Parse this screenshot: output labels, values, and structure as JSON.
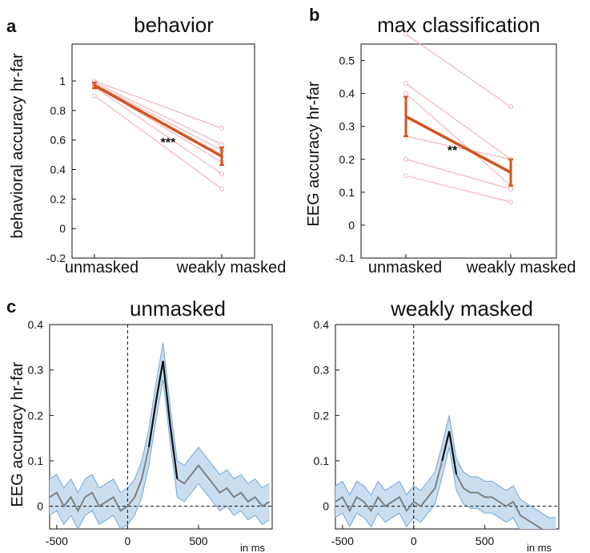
{
  "colors": {
    "accent": "#D4541F",
    "accent_light": "#F4B4B4",
    "mean_line": "#111111",
    "nonsig_line": "#808080",
    "band_fill": "#C9DDEF",
    "band_edge": "#6FA8DC"
  },
  "panel_letters": [
    "a",
    "b",
    "c"
  ],
  "chart_data": [
    {
      "type": "line",
      "letter": "a",
      "title": "behavior",
      "ylabel": "behavioral accuracy hr-far",
      "xlabel": "",
      "categories": [
        "unmasked",
        "weakly masked"
      ],
      "ylim": [
        -0.2,
        1.25
      ],
      "yticks": [
        -0.2,
        0,
        0.2,
        0.4,
        0.6,
        0.8,
        1
      ],
      "ytick_labels": [
        "-0.2",
        "0",
        "0.2",
        "0.4",
        "0.6",
        "0.8",
        "1"
      ],
      "mean": [
        0.97,
        0.49
      ],
      "error": [
        [
          0.95,
          0.99
        ],
        [
          0.43,
          0.55
        ]
      ],
      "subjects": [
        [
          1.0,
          0.68
        ],
        [
          0.99,
          0.57
        ],
        [
          0.98,
          0.53
        ],
        [
          0.97,
          0.45
        ],
        [
          0.96,
          0.37
        ],
        [
          0.9,
          0.27
        ]
      ],
      "significance": "***"
    },
    {
      "type": "line",
      "letter": "b",
      "title": "max classification",
      "ylabel": "EEG accuracy hr-far",
      "xlabel": "",
      "categories": [
        "unmasked",
        "weakly masked"
      ],
      "ylim": [
        -0.1,
        0.55
      ],
      "yticks": [
        -0.1,
        0,
        0.1,
        0.2,
        0.3,
        0.4,
        0.5
      ],
      "ytick_labels": [
        "-0.1",
        "0",
        "0.1",
        "0.2",
        "0.3",
        "0.4",
        "0.5"
      ],
      "mean": [
        0.33,
        0.16
      ],
      "error": [
        [
          0.27,
          0.39
        ],
        [
          0.12,
          0.2
        ]
      ],
      "subjects": [
        [
          0.58,
          0.36
        ],
        [
          0.43,
          0.2
        ],
        [
          0.4,
          0.12
        ],
        [
          0.27,
          0.2
        ],
        [
          0.2,
          0.11
        ],
        [
          0.15,
          0.07
        ]
      ],
      "significance": "**"
    },
    {
      "type": "line",
      "letter": "c",
      "title": "unmasked",
      "ylabel": "EEG accuracy hr-far",
      "unit_label": "in ms",
      "xlim": [
        -550,
        1020
      ],
      "ylim": [
        -0.05,
        0.4
      ],
      "xticks": [
        -500,
        0,
        500
      ],
      "xtick_labels": [
        "-500",
        "0",
        "500"
      ],
      "yticks": [
        0,
        0.1,
        0.2,
        0.3,
        0.4
      ],
      "ytick_labels": [
        "0",
        "0.1",
        "0.2",
        "0.3",
        "0.4"
      ],
      "ci_halfwidth": 0.04,
      "significant_window": [
        160,
        300
      ],
      "series": [
        {
          "x": [
            -550,
            -500,
            -450,
            -400,
            -350,
            -300,
            -250,
            -200,
            -150,
            -100,
            -50,
            0,
            50,
            100,
            150,
            200,
            250,
            300,
            350,
            400,
            450,
            500,
            550,
            600,
            650,
            700,
            750,
            800,
            850,
            900,
            950,
            1000
          ],
          "values": [
            0.02,
            0.03,
            0.0,
            0.02,
            -0.01,
            0.02,
            0.03,
            0.0,
            0.01,
            0.02,
            -0.01,
            0.0,
            0.02,
            0.06,
            0.13,
            0.23,
            0.32,
            0.18,
            0.06,
            0.05,
            0.07,
            0.09,
            0.07,
            0.05,
            0.03,
            0.04,
            0.02,
            0.03,
            0.01,
            0.02,
            0.0,
            0.01
          ]
        }
      ]
    },
    {
      "type": "line",
      "title": "weakly masked",
      "unit_label": "in ms",
      "xlim": [
        -550,
        1020
      ],
      "ylim": [
        -0.05,
        0.4
      ],
      "xticks": [
        -500,
        0,
        500
      ],
      "xtick_labels": [
        "-500",
        "0",
        "500"
      ],
      "yticks": [
        0,
        0.1,
        0.2,
        0.3,
        0.4
      ],
      "ytick_labels": [
        "0",
        "0.1",
        "0.2",
        "0.3",
        "0.4"
      ],
      "ci_halfwidth": 0.035,
      "significant_window": [
        215,
        285
      ],
      "series": [
        {
          "x": [
            -550,
            -500,
            -450,
            -400,
            -350,
            -300,
            -250,
            -200,
            -150,
            -100,
            -50,
            0,
            50,
            100,
            150,
            200,
            250,
            300,
            350,
            400,
            450,
            500,
            550,
            600,
            650,
            700,
            750,
            800,
            850,
            900,
            950,
            1000
          ],
          "values": [
            0.01,
            0.02,
            -0.01,
            0.02,
            0.01,
            -0.01,
            0.02,
            0.0,
            0.01,
            0.02,
            -0.01,
            0.01,
            0.0,
            0.02,
            0.04,
            0.1,
            0.165,
            0.07,
            0.04,
            0.03,
            0.03,
            0.02,
            0.02,
            0.01,
            0.0,
            0.01,
            -0.02,
            -0.03,
            -0.04,
            -0.05,
            -0.06,
            -0.06
          ]
        }
      ]
    }
  ]
}
